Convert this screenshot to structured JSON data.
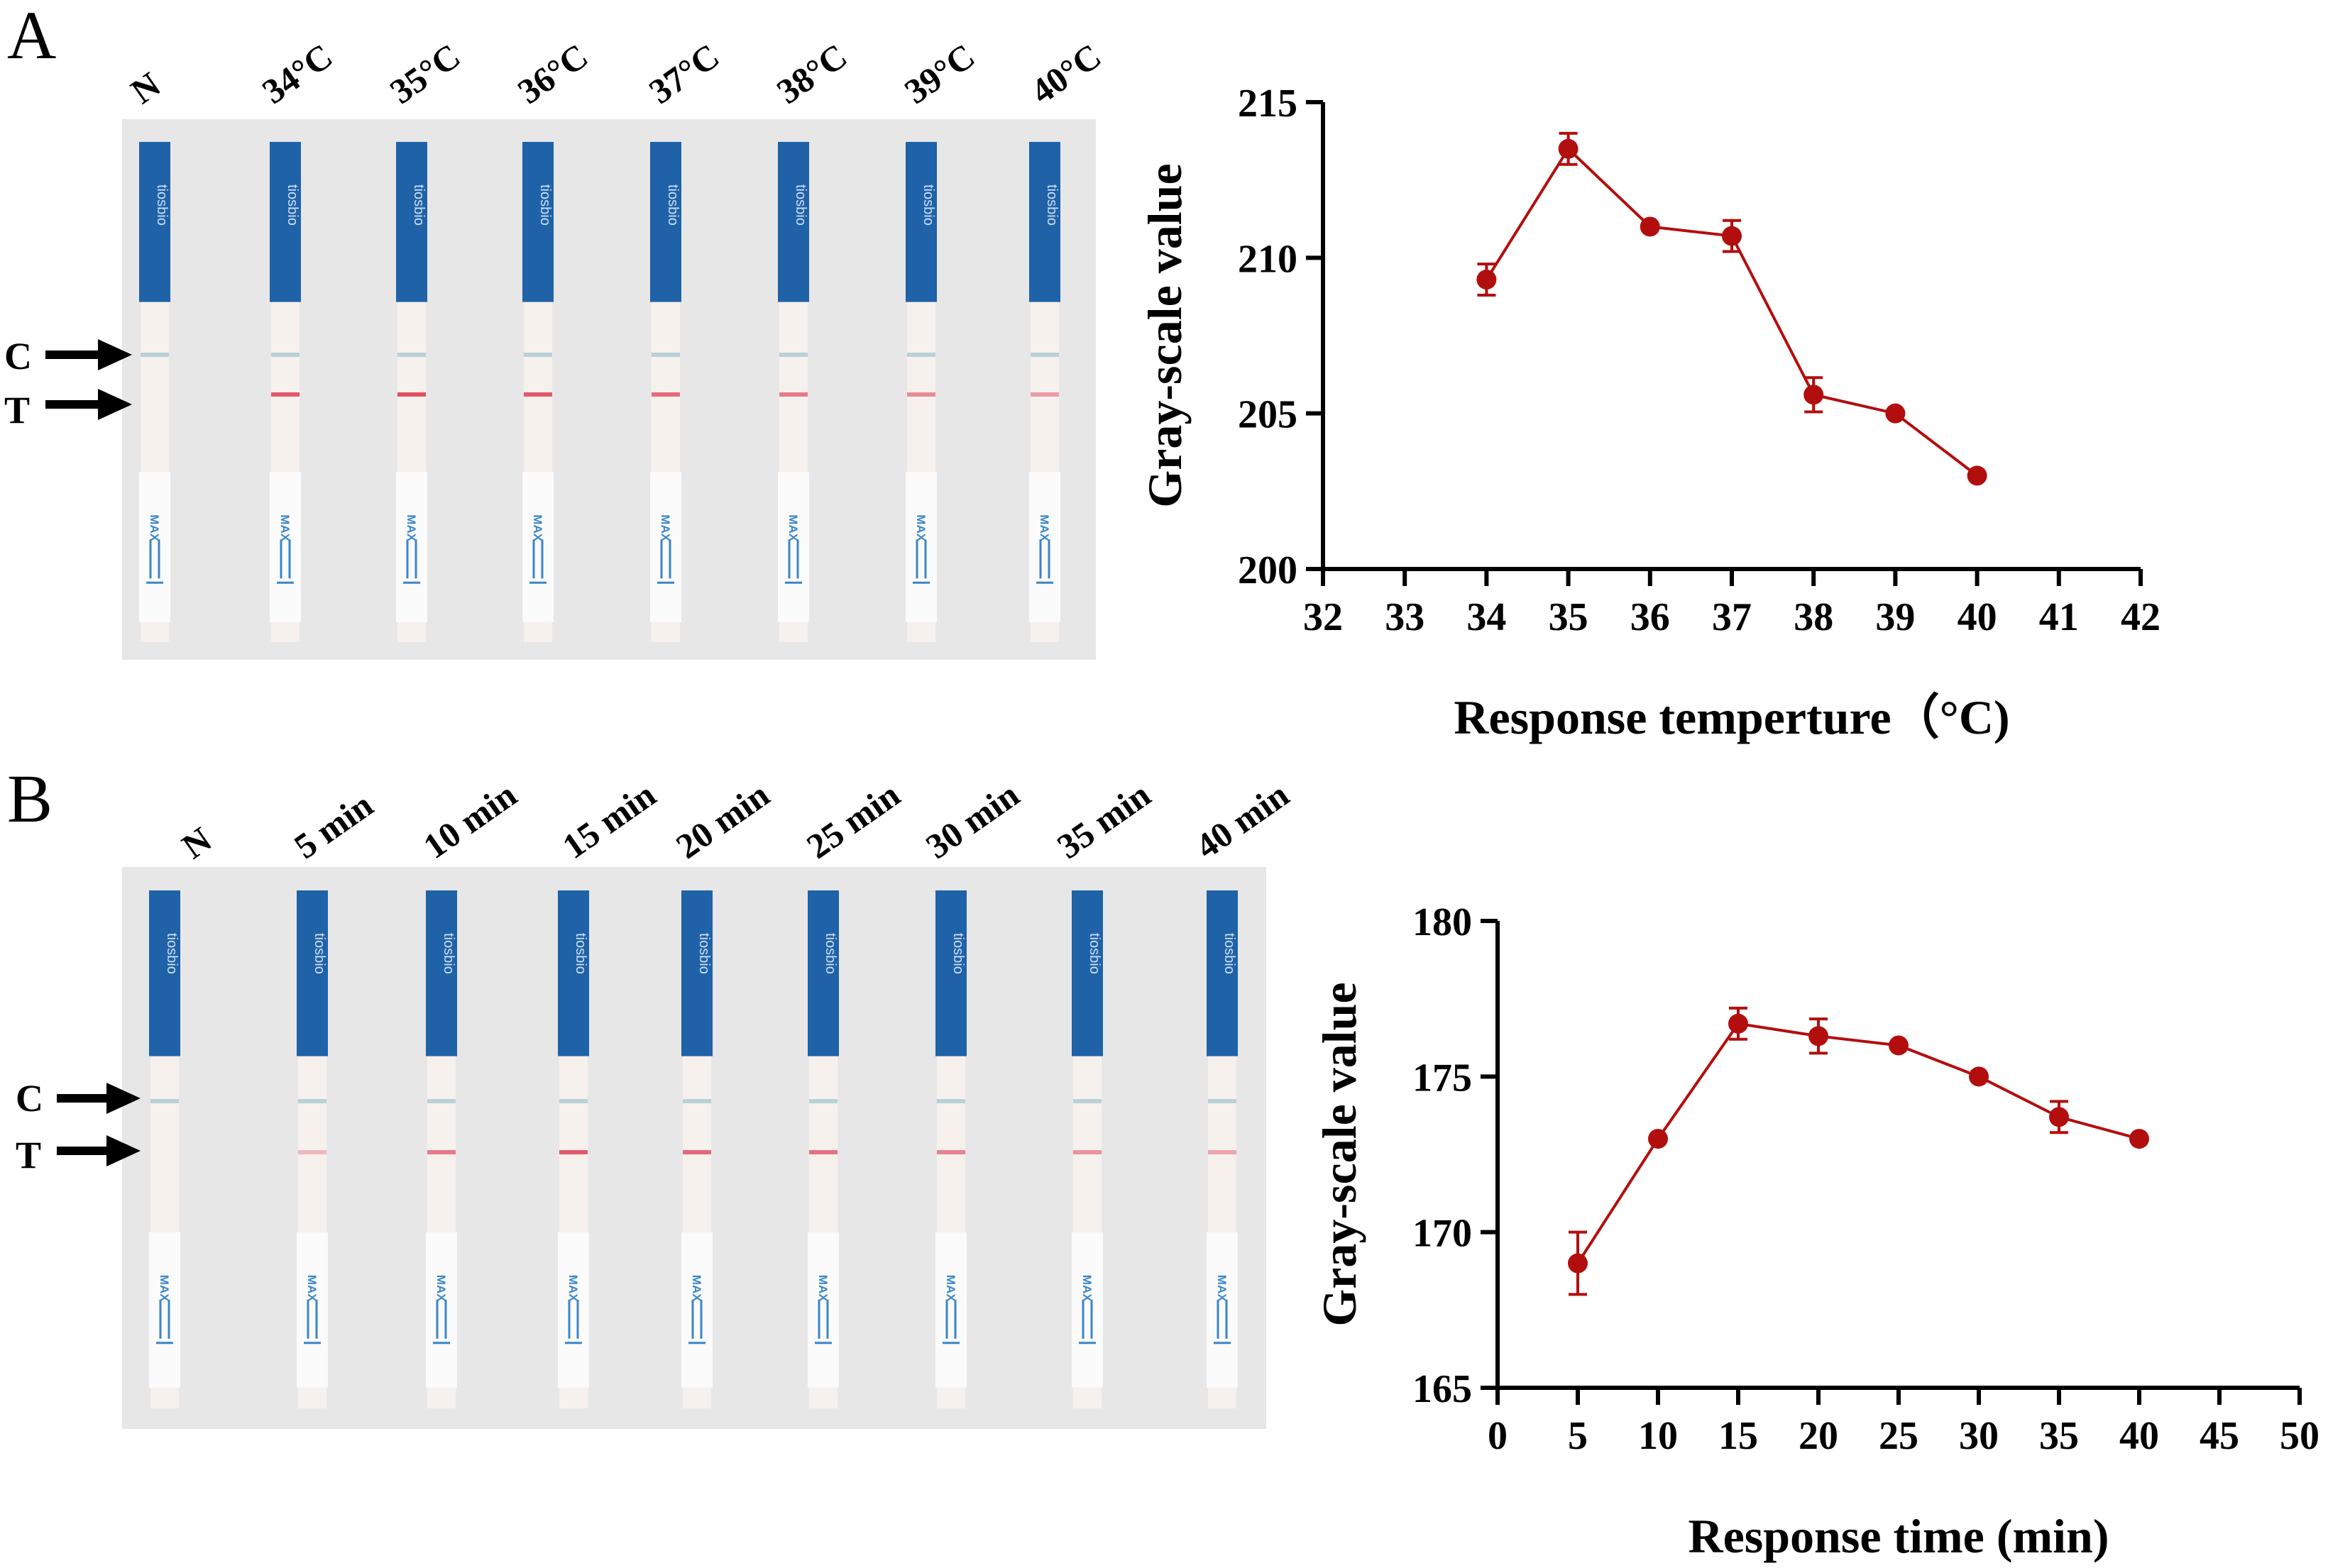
{
  "panels": [
    {
      "letter": "A",
      "lane_labels": [
        "N",
        "34°C",
        "35°C",
        "36°C",
        "37°C",
        "38°C",
        "39°C",
        "40°C"
      ],
      "control_label": "C",
      "test_label": "T",
      "strip_brand": "tiosbio",
      "strip_max": "MAX"
    },
    {
      "letter": "B",
      "lane_labels": [
        "N",
        "5 min",
        "10 min",
        "15 min",
        "20 min",
        "25 min",
        "30 min",
        "35 min",
        "40 min"
      ],
      "control_label": "C",
      "test_label": "T",
      "strip_brand": "tiosbio",
      "strip_max": "MAX"
    }
  ],
  "chart_data": [
    {
      "type": "line",
      "title": "",
      "xlabel": "Response temperture（°C)",
      "ylabel": "Gray-scale value",
      "xlim": [
        32,
        42
      ],
      "ylim": [
        200,
        215
      ],
      "xticks": [
        32,
        33,
        34,
        35,
        36,
        37,
        38,
        39,
        40,
        41,
        42
      ],
      "yticks": [
        200,
        205,
        210,
        215
      ],
      "grid": false,
      "color": "#b30e0e",
      "series": [
        {
          "name": "Gray-scale value",
          "x": [
            34,
            35,
            36,
            37,
            38,
            39,
            40
          ],
          "y": [
            209.3,
            213.5,
            211.0,
            210.7,
            205.6,
            205.0,
            203.0
          ],
          "error": [
            0.5,
            0.5,
            0.0,
            0.5,
            0.55,
            0.0,
            0.0
          ]
        }
      ]
    },
    {
      "type": "line",
      "title": "",
      "xlabel": "Response time (min)",
      "ylabel": "Gray-scale value",
      "xlim": [
        0,
        50
      ],
      "ylim": [
        165,
        180
      ],
      "xticks": [
        0,
        5,
        10,
        15,
        20,
        25,
        30,
        35,
        40,
        45,
        50
      ],
      "yticks": [
        165,
        170,
        175,
        180
      ],
      "grid": false,
      "color": "#b30e0e",
      "series": [
        {
          "name": "Gray-scale value",
          "x": [
            5,
            10,
            15,
            20,
            25,
            30,
            35,
            40
          ],
          "y": [
            169.0,
            173.0,
            176.7,
            176.3,
            176.0,
            175.0,
            173.7,
            173.0
          ],
          "error": [
            1.0,
            0.0,
            0.5,
            0.55,
            0.0,
            0.0,
            0.5,
            0.0
          ]
        }
      ]
    }
  ]
}
